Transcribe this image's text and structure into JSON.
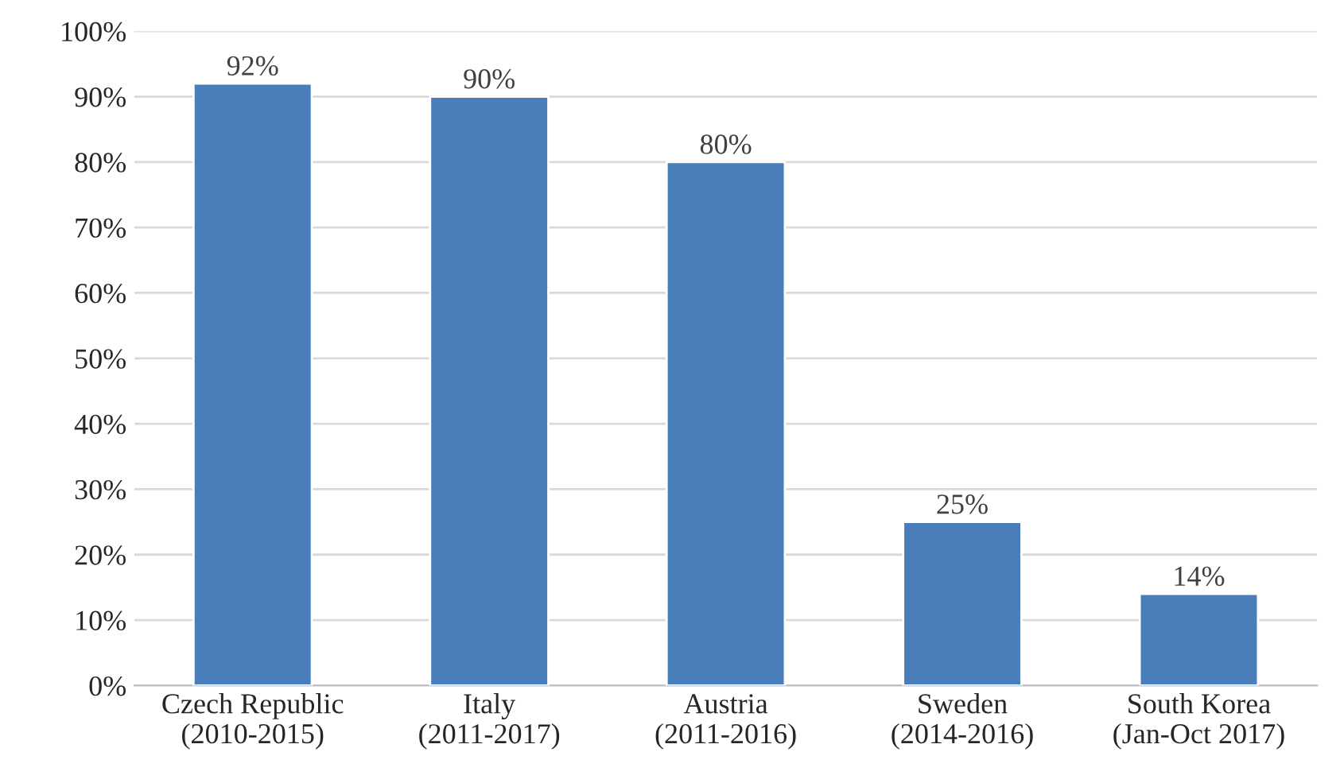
{
  "chart_data": {
    "type": "bar",
    "categories": [
      "Czech Republic\n(2010-2015)",
      "Italy\n(2011-2017)",
      "Austria\n(2011-2016)",
      "Sweden\n(2014-2016)",
      "South Korea\n(Jan-Oct 2017)"
    ],
    "values": [
      92,
      90,
      80,
      25,
      14
    ],
    "value_labels": [
      "92%",
      "90%",
      "80%",
      "25%",
      "14%"
    ],
    "color": "#4a7ebb",
    "ylim": [
      0,
      100
    ],
    "yticks": [
      {
        "value": 0,
        "label": "0%"
      },
      {
        "value": 10,
        "label": "10%"
      },
      {
        "value": 20,
        "label": "20%"
      },
      {
        "value": 30,
        "label": "30%"
      },
      {
        "value": 40,
        "label": "40%"
      },
      {
        "value": 50,
        "label": "50%"
      },
      {
        "value": 60,
        "label": "60%"
      },
      {
        "value": 70,
        "label": "70%"
      },
      {
        "value": 80,
        "label": "80%"
      },
      {
        "value": 90,
        "label": "90%"
      },
      {
        "value": 100,
        "label": "100%"
      }
    ],
    "grid": "y"
  }
}
